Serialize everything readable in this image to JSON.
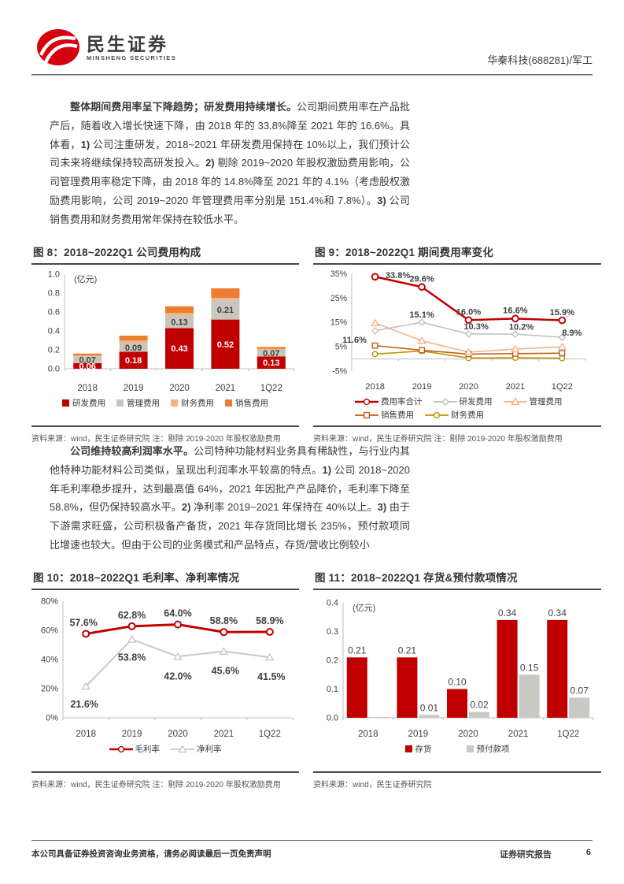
{
  "header": {
    "brand_cn": "民生证券",
    "brand_en": "MINSHENG SECURITIES",
    "doc_ref": "华秦科技(688281)/军工"
  },
  "paragraphs": {
    "p1": [
      {
        "t": "整体期间费用率呈下降趋势；研发费用持续增长。",
        "b": true
      },
      {
        "t": "公司期间费用率在产品批产后，随着收入增长快速下降，由 2018 年的 33.8%降至 2021 年的 16.6%。具体看，",
        "b": false
      },
      {
        "t": "1)",
        "b": true
      },
      {
        "t": " 公司注重研发，2018~2021 年研发费用保持在 10%以上，我们预计公司未来将继续保持较高研发投入。",
        "b": false
      },
      {
        "t": "2)",
        "b": true
      },
      {
        "t": " 剔除 2019~2020 年股权激励费用影响，公司管理费用率稳定下降，由 2018 年的 14.8%降至 2021 年的 4.1%（考虑股权激励费用影响，公司 2019~2020 年管理费用率分别是 151.4%和 7.8%）。",
        "b": false
      },
      {
        "t": "3)",
        "b": true
      },
      {
        "t": " 公司销售费用和财务费用常年保持在较低水平。",
        "b": false
      }
    ],
    "p2": [
      {
        "t": "公司维持较高利润率水平。",
        "b": true
      },
      {
        "t": "公司特种功能材料业务具有稀缺性，与行业内其他特种功能材料公司类似，呈现出利润率水平较高的特点。",
        "b": false
      },
      {
        "t": "1)",
        "b": true
      },
      {
        "t": " 公司 2018~2020 年毛利率稳步提升，达到最高值 64%，2021 年因批产产品降价，毛利率下降至 58.8%，但仍保持较高水平。",
        "b": false
      },
      {
        "t": "2)",
        "b": true
      },
      {
        "t": " 净利率 2019~2021 年保持在 40%以上。",
        "b": false
      },
      {
        "t": "3)",
        "b": true
      },
      {
        "t": " 由于下游需求旺盛，公司积极备产备货，2021 年存货同比增长 235%，预付款项同比增速也较大。但由于公司的业务模式和产品特点，存货/营收比例较小",
        "b": false
      }
    ]
  },
  "figures": {
    "fig8": {
      "title": "图 8：2018~2022Q1 公司费用构成",
      "source": "资料来源：wind，民生证券研究院 注：剔除 2019-2020 年股权激励费用"
    },
    "fig9": {
      "title": "图 9：2018~2022Q1 期间费用率变化",
      "source": "资料来源：wind，民生证券研究院 注：剔除 2019-2020 年股权激励费用"
    },
    "fig10": {
      "title": "图 10：2018~2022Q1 毛利率、净利率情况",
      "source": "资料来源：wind，民生证券研究院 注：剔除 2019-2020 年股权激励费用"
    },
    "fig11": {
      "title": "图 11：2018~2022Q1 存货&预付款项情况",
      "source": "资料来源：wind，民生证券研究院"
    }
  },
  "chart_data": [
    {
      "id": "fig8",
      "type": "bar",
      "stacked": true,
      "title": "2018~2022Q1 公司费用构成",
      "unit": "(亿元)",
      "categories": [
        "2018",
        "2019",
        "2020",
        "2021",
        "1Q22"
      ],
      "series": [
        {
          "name": "研发费用",
          "color": "#C00000",
          "values": [
            0.06,
            0.18,
            0.43,
            0.52,
            0.13
          ],
          "labels": [
            "0.06",
            "0.18",
            "0.43",
            "0.52",
            "0.13"
          ],
          "label_color": "#FFFFFF"
        },
        {
          "name": "管理费用",
          "color": "#C9C6BD",
          "values": [
            0.07,
            0.09,
            0.13,
            0.21,
            0.07
          ],
          "labels": [
            "0.07",
            "0.09",
            "0.13",
            "0.21",
            "0.07"
          ],
          "label_color": "#404040"
        },
        {
          "name": "财务费用",
          "color": "#F2B489",
          "values": [
            0.01,
            0.03,
            0.03,
            0.02,
            0.01
          ]
        },
        {
          "name": "销售费用",
          "color": "#ED7D31",
          "values": [
            0.02,
            0.05,
            0.07,
            0.1,
            0.02
          ]
        }
      ],
      "ylim": [
        0,
        1.0
      ],
      "yticks": [
        0,
        0.2,
        0.4,
        0.6,
        0.8,
        1.0
      ],
      "ytick_labels": [
        "0.0",
        "0.2",
        "0.4",
        "0.6",
        "0.8",
        "1.0"
      ],
      "grid": false,
      "legend_position": "bottom"
    },
    {
      "id": "fig9",
      "type": "line",
      "title": "2018~2022Q1 期间费用率变化",
      "categories": [
        "2018",
        "2019",
        "2020",
        "2021",
        "1Q22"
      ],
      "series": [
        {
          "name": "费用率合计",
          "color": "#C00000",
          "marker": "circle",
          "width": 2.6,
          "values": [
            33.8,
            29.6,
            16.0,
            16.6,
            15.9
          ],
          "labels": [
            "33.8%",
            "29.6%",
            "16.0%",
            "16.6%",
            "15.9%"
          ]
        },
        {
          "name": "研发费用",
          "color": "#BFBFBF",
          "marker": "diamond",
          "width": 1.6,
          "values": [
            11.6,
            15.1,
            10.3,
            10.2,
            8.9
          ],
          "labels": [
            "11.6%",
            "15.1%",
            "10.3%",
            "10.2%",
            "8.9%"
          ]
        },
        {
          "name": "管理费用",
          "color": "#F4B183",
          "marker": "triangle",
          "width": 1.6,
          "values": [
            14.8,
            7.5,
            2.8,
            4.1,
            5.0
          ]
        },
        {
          "name": "销售费用",
          "color": "#C55A11",
          "marker": "square",
          "width": 1.6,
          "values": [
            5.5,
            3.6,
            2.0,
            2.2,
            2.4
          ]
        },
        {
          "name": "财务费用",
          "color": "#BF9000",
          "marker": "circle",
          "width": 1.6,
          "values": [
            2.0,
            3.3,
            0.4,
            0.5,
            0.3
          ]
        }
      ],
      "ylim": [
        -5,
        35
      ],
      "yticks": [
        -5,
        5,
        15,
        25,
        35
      ],
      "ytick_labels": [
        "-5%",
        "5%",
        "15%",
        "25%",
        "35%"
      ],
      "x_axis_at": 0,
      "grid": false,
      "legend_position": "bottom"
    },
    {
      "id": "fig10",
      "type": "line",
      "title": "2018~2022Q1 毛利率、净利率情况",
      "categories": [
        "2018",
        "2019",
        "2020",
        "2021",
        "1Q22"
      ],
      "series": [
        {
          "name": "毛利率",
          "color": "#C00000",
          "marker": "circle",
          "width": 3,
          "values": [
            57.6,
            62.8,
            64.0,
            58.8,
            58.9
          ],
          "labels": [
            "57.6%",
            "62.8%",
            "64.0%",
            "58.8%",
            "58.9%"
          ]
        },
        {
          "name": "净利率",
          "color": "#C9C9C3",
          "marker": "triangle",
          "width": 2,
          "values": [
            21.6,
            53.8,
            42.0,
            45.6,
            41.5
          ],
          "labels": [
            "21.6%",
            "53.8%",
            "42.0%",
            "45.6%",
            "41.5%"
          ]
        }
      ],
      "ylim": [
        0,
        80
      ],
      "yticks": [
        0,
        20,
        40,
        60,
        80
      ],
      "ytick_labels": [
        "0%",
        "20%",
        "40%",
        "60%",
        "80%"
      ],
      "x_axis_at": 0,
      "grid": false,
      "legend_position": "bottom"
    },
    {
      "id": "fig11",
      "type": "bar",
      "stacked": false,
      "title": "2018~2022Q1 存货&预付款项情况",
      "unit": "(亿元)",
      "categories": [
        "2018",
        "2019",
        "2020",
        "2021",
        "1Q22"
      ],
      "series": [
        {
          "name": "存货",
          "color": "#C00000",
          "values": [
            0.21,
            0.21,
            0.1,
            0.34,
            0.34
          ],
          "labels": [
            "0.21",
            "0.21",
            "0.10",
            "0.34",
            "0.34"
          ],
          "label_color": "#404040"
        },
        {
          "name": "预付款项",
          "color": "#C9C9C3",
          "values": [
            0.003,
            0.01,
            0.02,
            0.15,
            0.07
          ],
          "labels": [
            null,
            "0.01",
            "0.02",
            "0.15",
            "0.07"
          ],
          "label_color": "#404040"
        }
      ],
      "ylim": [
        0,
        0.4
      ],
      "yticks": [
        0,
        0.1,
        0.2,
        0.3,
        0.4
      ],
      "ytick_labels": [
        "0.0",
        "0.1",
        "0.2",
        "0.3",
        "0.4"
      ],
      "grid": false,
      "legend_position": "bottom"
    }
  ],
  "footer": {
    "left": "本公司具备证券投资咨询业务资格，请务必阅读最后一页免责声明",
    "report_type": "证券研究报告",
    "page": "6"
  },
  "colors": {
    "brand_red": "#D7000F",
    "chart_red": "#C00000",
    "rule_dark": "#4a4a4a",
    "text_dark": "#3a3a3a",
    "source_gray": "#555555"
  }
}
